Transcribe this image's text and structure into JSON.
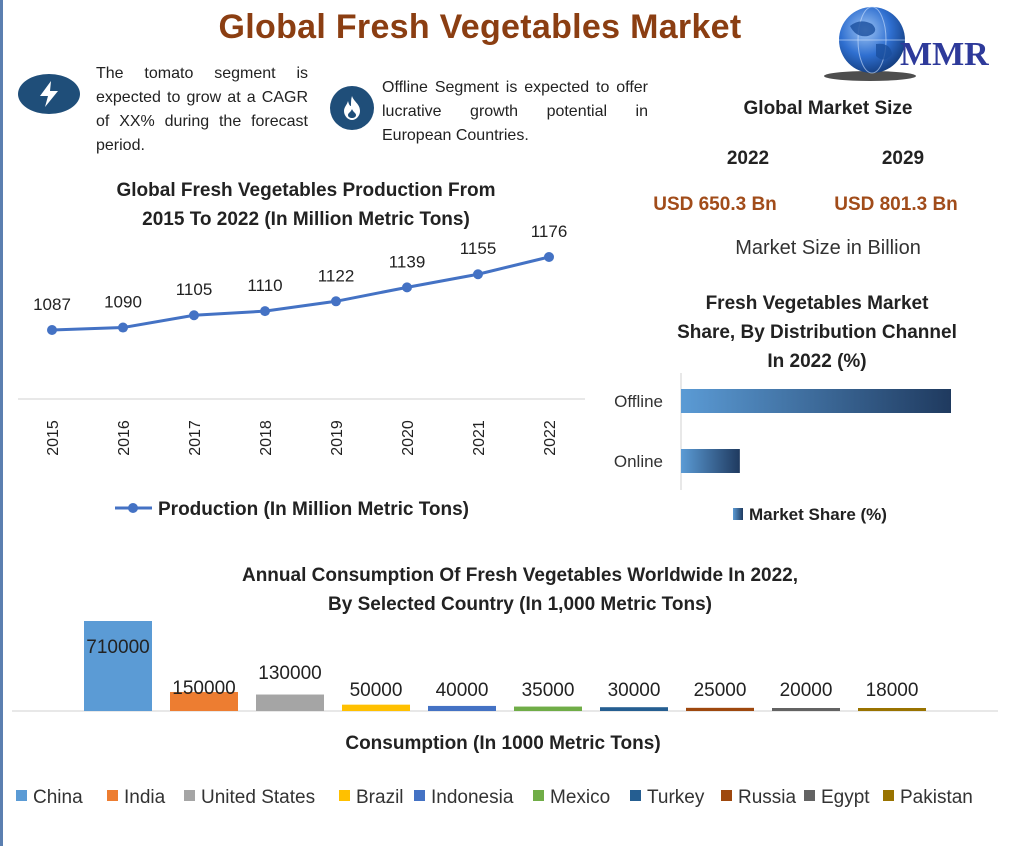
{
  "header": {
    "title": "Global Fresh Vegetables Market"
  },
  "logo": {
    "text": "MMR",
    "icon": "globe-icon"
  },
  "callouts": [
    {
      "icon": "lightning-icon",
      "text": "The tomato segment is expected to grow at a CAGR of XX% during the forecast period."
    },
    {
      "icon": "flame-icon",
      "text": "Offline Segment is expected to offer lucrative growth potential in European Countries."
    }
  ],
  "market_size": {
    "title": "Global Market Size",
    "years": [
      "2022",
      "2029"
    ],
    "values": [
      "USD 650.3 Bn",
      "USD 801.3 Bn"
    ],
    "note": "Market Size in Billion"
  },
  "colors": {
    "title": "#8b3e12",
    "value": "#a14c1a",
    "line": "#4472c4",
    "bar_gradient_start": "#5b9bd5",
    "bar_gradient_end": "#1f3a5f"
  },
  "chart_data": [
    {
      "type": "line",
      "title_lines": [
        "Global Fresh Vegetables Production From",
        "2015 To 2022 (In Million Metric Tons)"
      ],
      "x": [
        "2015",
        "2016",
        "2017",
        "2018",
        "2019",
        "2020",
        "2021",
        "2022"
      ],
      "series": [
        {
          "name": "Production (In Million Metric Tons)",
          "values": [
            1087,
            1090,
            1105,
            1110,
            1122,
            1139,
            1155,
            1176
          ],
          "color": "#4472c4"
        }
      ],
      "ylim": [
        1000,
        1200
      ],
      "legend": "bottom",
      "grid": false
    },
    {
      "type": "bar",
      "orientation": "horizontal",
      "title_lines": [
        "Fresh Vegetables Market",
        "Share, By Distribution Channel",
        "In 2022 (%)"
      ],
      "categories": [
        "Offline",
        "Online"
      ],
      "series": [
        {
          "name": "Market Share (%)",
          "values": [
            78,
            17
          ]
        }
      ],
      "xlim": [
        0,
        100
      ],
      "legend": "bottom",
      "grid": false
    },
    {
      "type": "bar",
      "title_lines": [
        "Annual Consumption Of Fresh Vegetables Worldwide In 2022,",
        "By Selected Country (In 1,000 Metric Tons)"
      ],
      "xlabel": "Consumption (In 1000 Metric Tons)",
      "categories": [
        "China",
        "India",
        "United States",
        "Brazil",
        "Indonesia",
        "Mexico",
        "Turkey",
        "Russia",
        "Egypt",
        "Pakistan"
      ],
      "values": [
        710000,
        150000,
        130000,
        50000,
        40000,
        35000,
        30000,
        25000,
        20000,
        18000
      ],
      "colors": [
        "#5b9bd5",
        "#ed7d31",
        "#a5a5a5",
        "#ffc000",
        "#4472c4",
        "#70ad47",
        "#255e91",
        "#9e480e",
        "#636363",
        "#997300"
      ],
      "ylim": [
        0,
        710000
      ],
      "legend": "bottom",
      "grid": false
    }
  ]
}
